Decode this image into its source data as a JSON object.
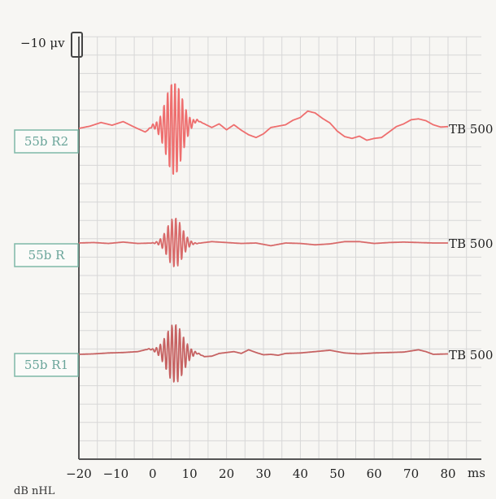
{
  "chart_data": {
    "type": "line",
    "title": "",
    "xlabel": "ms",
    "ylabel": "dB nHL",
    "scale_label": "−10 μv",
    "xlim": [
      -20,
      80
    ],
    "x_ticks": [
      -20,
      -10,
      0,
      10,
      20,
      30,
      40,
      50,
      60,
      70,
      80
    ],
    "x_tick_labels": [
      "−20",
      "−10",
      "0",
      "10",
      "20",
      "30",
      "40",
      "50",
      "60",
      "70",
      "80"
    ],
    "grid": true,
    "colors": {
      "trace": "#e86a6a",
      "trace_dark": "#b85050",
      "label_box": "#7fb8a8",
      "label_text": "#6aa59a",
      "axis": "#555555",
      "grid": "#d7d7d7"
    },
    "traces": [
      {
        "label": "55b R2",
        "right_label": "TB 500",
        "color": "#ee6e6e",
        "points": [
          [
            -20,
            0
          ],
          [
            -17,
            0.5
          ],
          [
            -14,
            1.3
          ],
          [
            -11,
            0.7
          ],
          [
            -8,
            1.5
          ],
          [
            -5,
            0.3
          ],
          [
            -2,
            -0.8
          ],
          [
            0,
            0.6
          ],
          [
            2,
            0.2
          ],
          [
            4,
            0.4
          ],
          [
            6,
            -0.2
          ],
          [
            8,
            0.4
          ],
          [
            10,
            0.8
          ],
          [
            12,
            1.8
          ],
          [
            14,
            1.0
          ],
          [
            16,
            0.2
          ],
          [
            18,
            1.0
          ],
          [
            20,
            -0.3
          ],
          [
            22,
            0.8
          ],
          [
            24,
            -0.4
          ],
          [
            26,
            -1.4
          ],
          [
            28,
            -2.0
          ],
          [
            30,
            -1.2
          ],
          [
            32,
            0.2
          ],
          [
            34,
            0.5
          ],
          [
            36,
            0.8
          ],
          [
            38,
            1.8
          ],
          [
            40,
            2.4
          ],
          [
            42,
            3.8
          ],
          [
            44,
            3.4
          ],
          [
            46,
            2.2
          ],
          [
            48,
            1.2
          ],
          [
            50,
            -0.6
          ],
          [
            52,
            -1.8
          ],
          [
            54,
            -2.2
          ],
          [
            56,
            -1.7
          ],
          [
            58,
            -2.6
          ],
          [
            60,
            -2.2
          ],
          [
            62,
            -2.0
          ],
          [
            64,
            -0.8
          ],
          [
            66,
            0.4
          ],
          [
            68,
            1.0
          ],
          [
            70,
            1.9
          ],
          [
            72,
            2.1
          ],
          [
            74,
            1.7
          ],
          [
            76,
            0.8
          ],
          [
            78,
            0.3
          ],
          [
            80,
            0.4
          ]
        ],
        "burst": {
          "center": 5.8,
          "sigma": 2.2,
          "amplitude": 10.5,
          "period": 1.0
        }
      },
      {
        "label": "55b R",
        "right_label": "TB 500",
        "color": "#d86a6a",
        "points": [
          [
            -20,
            0
          ],
          [
            -16,
            0.1
          ],
          [
            -12,
            -0.1
          ],
          [
            -8,
            0.2
          ],
          [
            -4,
            -0.1
          ],
          [
            0,
            0
          ],
          [
            4,
            0.2
          ],
          [
            8,
            0
          ],
          [
            12,
            -0.1
          ],
          [
            16,
            0.3
          ],
          [
            20,
            0.1
          ],
          [
            24,
            -0.1
          ],
          [
            28,
            0
          ],
          [
            32,
            -0.6
          ],
          [
            36,
            0
          ],
          [
            40,
            -0.1
          ],
          [
            44,
            -0.4
          ],
          [
            48,
            -0.2
          ],
          [
            52,
            0.3
          ],
          [
            56,
            0.3
          ],
          [
            60,
            -0.1
          ],
          [
            64,
            0.1
          ],
          [
            68,
            0.2
          ],
          [
            72,
            0.1
          ],
          [
            76,
            0
          ],
          [
            80,
            0
          ]
        ],
        "burst": {
          "center": 6.0,
          "sigma": 2.0,
          "amplitude": 5.5,
          "period": 1.05
        }
      },
      {
        "label": "55b R1",
        "right_label": "TB 500",
        "color": "#c66262",
        "points": [
          [
            -20,
            0
          ],
          [
            -16,
            0.1
          ],
          [
            -12,
            0.3
          ],
          [
            -8,
            0.4
          ],
          [
            -4,
            0.6
          ],
          [
            -1,
            1.2
          ],
          [
            0,
            1.0
          ],
          [
            4,
            0.4
          ],
          [
            8,
            0
          ],
          [
            12,
            0.3
          ],
          [
            14,
            -0.5
          ],
          [
            16,
            -0.4
          ],
          [
            18,
            0.2
          ],
          [
            20,
            0.4
          ],
          [
            22,
            0.6
          ],
          [
            24,
            0.2
          ],
          [
            26,
            1.0
          ],
          [
            28,
            0.4
          ],
          [
            30,
            -0.1
          ],
          [
            32,
            0
          ],
          [
            34,
            -0.2
          ],
          [
            36,
            0.2
          ],
          [
            40,
            0.3
          ],
          [
            44,
            0.6
          ],
          [
            48,
            0.9
          ],
          [
            52,
            0.3
          ],
          [
            56,
            0.1
          ],
          [
            60,
            0.3
          ],
          [
            64,
            0.4
          ],
          [
            68,
            0.5
          ],
          [
            72,
            1.0
          ],
          [
            74,
            0.6
          ],
          [
            76,
            0
          ],
          [
            80,
            0.1
          ]
        ],
        "burst": {
          "center": 6.0,
          "sigma": 2.3,
          "amplitude": 6.5,
          "period": 1.05
        }
      }
    ]
  }
}
